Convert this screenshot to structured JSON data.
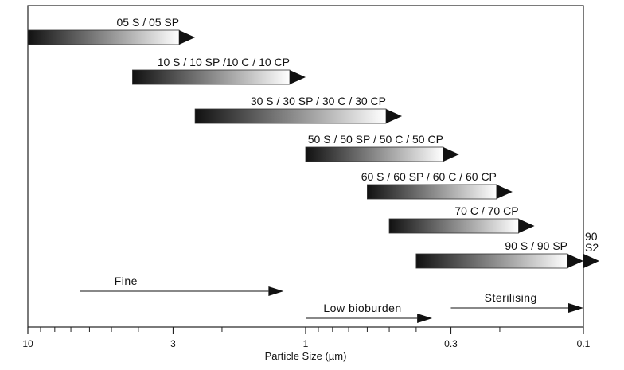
{
  "chart_data": {
    "type": "range-bar",
    "xlabel": "Particle Size (µm)",
    "x_scale": "log",
    "x_direction": "decreasing-left-to-right",
    "xlim": [
      10,
      0.1
    ],
    "ticks": [
      {
        "value": 10,
        "label": "10"
      },
      {
        "value": 3,
        "label": "3"
      },
      {
        "value": 1,
        "label": "1"
      },
      {
        "value": 0.3,
        "label": "0.3"
      },
      {
        "value": 0.1,
        "label": "0.1"
      }
    ],
    "minor_ticks": [
      9,
      8,
      7,
      6,
      5,
      4,
      2,
      0.9,
      0.8,
      0.7,
      0.6,
      0.5,
      0.4,
      0.2
    ],
    "bars": [
      {
        "label": "05 S / 05 SP",
        "from": 10,
        "to": 2.5
      },
      {
        "label": "10 S / 10 SP /10 C / 10 CP",
        "from": 4.2,
        "to": 1.0
      },
      {
        "label": "30 S / 30 SP / 30 C / 30 CP",
        "from": 2.5,
        "to": 0.45
      },
      {
        "label": "50 S / 50 SP / 50 C / 50 CP",
        "from": 1.0,
        "to": 0.28
      },
      {
        "label": "60 S / 60 SP / 60 C / 60 CP",
        "from": 0.6,
        "to": 0.18
      },
      {
        "label": "70 C / 70 CP",
        "from": 0.5,
        "to": 0.15
      },
      {
        "label": "90 S / 90 SP",
        "from": 0.4,
        "to": 0.1
      },
      {
        "label": "90 S2",
        "label_lines": [
          "90",
          "S2"
        ],
        "from": 0.1,
        "to": 0.1
      }
    ],
    "ranges": [
      {
        "label": "Fine",
        "from": 6.5,
        "to": 1.2
      },
      {
        "label": "Low bioburden",
        "from": 1.0,
        "to": 0.35
      },
      {
        "label": "Sterilising",
        "from": 0.3,
        "to": 0.1
      }
    ]
  },
  "colors": {
    "bar_dark": "#111111",
    "bar_light": "#ffffff",
    "outline": "#222222"
  }
}
